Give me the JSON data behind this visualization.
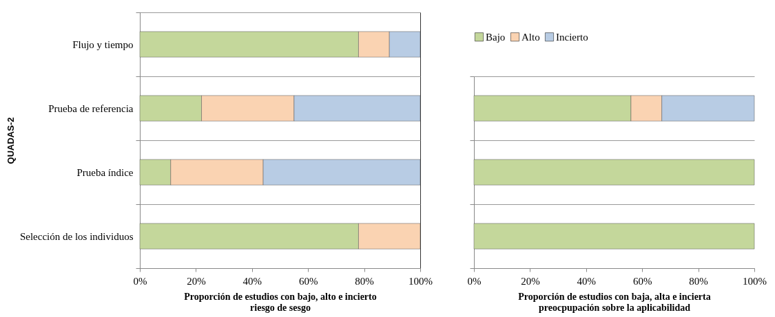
{
  "chart_data": [
    {
      "type": "bar",
      "orientation": "horizontal",
      "stacked": true,
      "xlabel": "Proporción de estudios con bajo, alto e incierto\nriesgo de sesgo",
      "ylabel": "QUADAS-2",
      "categories": [
        "Flujo y tiempo",
        "Prueba de referencia",
        "Prueba índice",
        "Selección de los individuos"
      ],
      "series": [
        {
          "color": "#c4d79b",
          "values": [
            78,
            22,
            11,
            78
          ]
        },
        {
          "color": "#fad3b2",
          "values": [
            11,
            33,
            33,
            22
          ]
        },
        {
          "color": "#b8cce4",
          "values": [
            11,
            45,
            56,
            0
          ]
        }
      ],
      "xlim": [
        0,
        100
      ],
      "xticks": [
        {
          "value": 0,
          "label": "0%"
        },
        {
          "value": 20,
          "label": "20%"
        },
        {
          "value": 40,
          "label": "40%"
        },
        {
          "value": 60,
          "label": "60%"
        },
        {
          "value": 80,
          "label": "80%"
        },
        {
          "value": 100,
          "label": "100%"
        }
      ],
      "grid": "y",
      "legend": false
    },
    {
      "type": "bar",
      "orientation": "horizontal",
      "stacked": true,
      "xlabel": "Proporción de estudios con baja, alta e incierta\npreocpupación sobre la aplicabilidad",
      "categories": [
        null,
        null,
        null
      ],
      "series": [
        {
          "name": "Bajo",
          "color": "#c4d79b",
          "values": [
            56,
            100,
            100
          ]
        },
        {
          "name": "Alto",
          "color": "#fad3b2",
          "values": [
            11,
            0,
            0
          ]
        },
        {
          "name": "Incierto",
          "color": "#b8cce4",
          "values": [
            33,
            0,
            0
          ]
        }
      ],
      "xlim": [
        0,
        100
      ],
      "xticks": [
        {
          "value": 0,
          "label": "0%"
        },
        {
          "value": 20,
          "label": "20%"
        },
        {
          "value": 40,
          "label": "40%"
        },
        {
          "value": 60,
          "label": "60%"
        },
        {
          "value": 80,
          "label": "80%"
        },
        {
          "value": 100,
          "label": "100%"
        }
      ],
      "grid": "y",
      "legend": "top left",
      "tick_labels": "x"
    }
  ]
}
